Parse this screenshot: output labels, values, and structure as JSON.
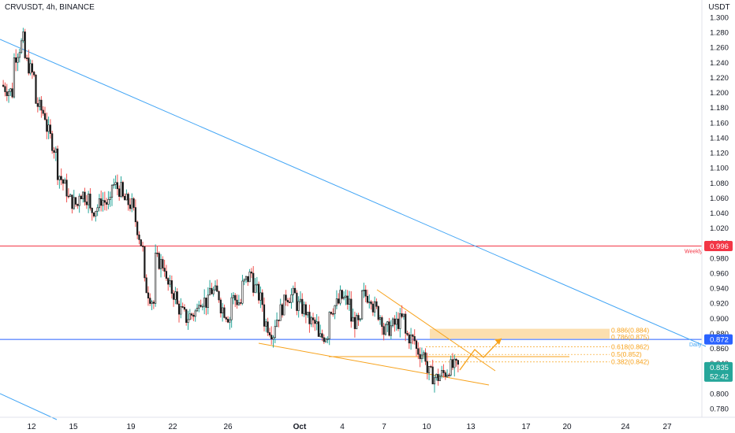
{
  "header": {
    "symbol_title": "CRVUSDT, 4h, BINANCE"
  },
  "price_scale": {
    "currency": "USDT"
  },
  "colors": {
    "up": "#26a69a",
    "down": "#ef5350",
    "candle": "#1c1c1c",
    "weekly": "#f23645",
    "daily": "#2962ff",
    "trend": "#42a5f5",
    "pattern": "#f7a21b"
  },
  "chart_data": {
    "type": "candlestick",
    "title": "CRVUSDT, 4h, BINANCE",
    "x_tick_labels": [
      "12",
      "15",
      "19",
      "22",
      "26",
      "Oct",
      "4",
      "7",
      "10",
      "13",
      "17",
      "20",
      "24",
      "27"
    ],
    "y_tick_labels": [
      "0.780",
      "0.800",
      "0.820",
      "0.840",
      "0.860",
      "0.880",
      "0.900",
      "0.920",
      "0.940",
      "0.960",
      "0.980",
      "1.000",
      "1.020",
      "1.040",
      "1.060",
      "1.080",
      "1.100",
      "1.120",
      "1.140",
      "1.160",
      "1.180",
      "1.200",
      "1.220",
      "1.240",
      "1.260",
      "1.280",
      "1.300"
    ],
    "y_range": [
      0.765,
      1.31
    ],
    "grid": false,
    "levels": [
      {
        "label": "Weekly",
        "value": 0.996,
        "value_label": "0.996"
      },
      {
        "label": "Daily",
        "value": 0.872,
        "value_label": "0.872"
      }
    ],
    "last_price": {
      "value": 0.835,
      "label": "0.835",
      "countdown": "52:42"
    },
    "fibonacci": [
      {
        "label": "0.886(0.884)",
        "value": 0.884
      },
      {
        "label": "0.786(0.875)",
        "value": 0.875
      },
      {
        "label": "0.618(0.862)",
        "value": 0.862
      },
      {
        "label": "0.5(0.852)",
        "value": 0.852
      },
      {
        "label": "0.382(0.842)",
        "value": 0.842
      }
    ],
    "price_path": [
      [
        1.21,
        1.2
      ],
      [
        1.24,
        1.27
      ],
      [
        1.25,
        1.22
      ],
      [
        1.19,
        1.17
      ],
      [
        1.16,
        1.12
      ],
      [
        1.1,
        1.07
      ],
      [
        1.06,
        1.05
      ],
      [
        1.07,
        1.06
      ],
      [
        1.04,
        1.05
      ],
      [
        1.06,
        1.05
      ],
      [
        1.08,
        1.07
      ],
      [
        1.06,
        1.05
      ],
      [
        1.05,
        0.99
      ],
      [
        0.95,
        0.92
      ],
      [
        0.98,
        0.97
      ],
      [
        0.95,
        0.93
      ],
      [
        0.92,
        0.9
      ],
      [
        0.9,
        0.91
      ],
      [
        0.93,
        0.92
      ],
      [
        0.94,
        0.93
      ],
      [
        0.92,
        0.9
      ],
      [
        0.93,
        0.92
      ],
      [
        0.94,
        0.96
      ],
      [
        0.95,
        0.92
      ],
      [
        0.9,
        0.88
      ],
      [
        0.89,
        0.92
      ],
      [
        0.93,
        0.93
      ],
      [
        0.92,
        0.91
      ],
      [
        0.9,
        0.89
      ],
      [
        0.87,
        0.88
      ],
      [
        0.91,
        0.92
      ],
      [
        0.93,
        0.92
      ],
      [
        0.9,
        0.89
      ],
      [
        0.93,
        0.93
      ],
      [
        0.92,
        0.9
      ],
      [
        0.88,
        0.89
      ],
      [
        0.89,
        0.9
      ],
      [
        0.88,
        0.87
      ],
      [
        0.86,
        0.85
      ],
      [
        0.83,
        0.82
      ],
      [
        0.82,
        0.83
      ],
      [
        0.835,
        0.835
      ]
    ]
  }
}
